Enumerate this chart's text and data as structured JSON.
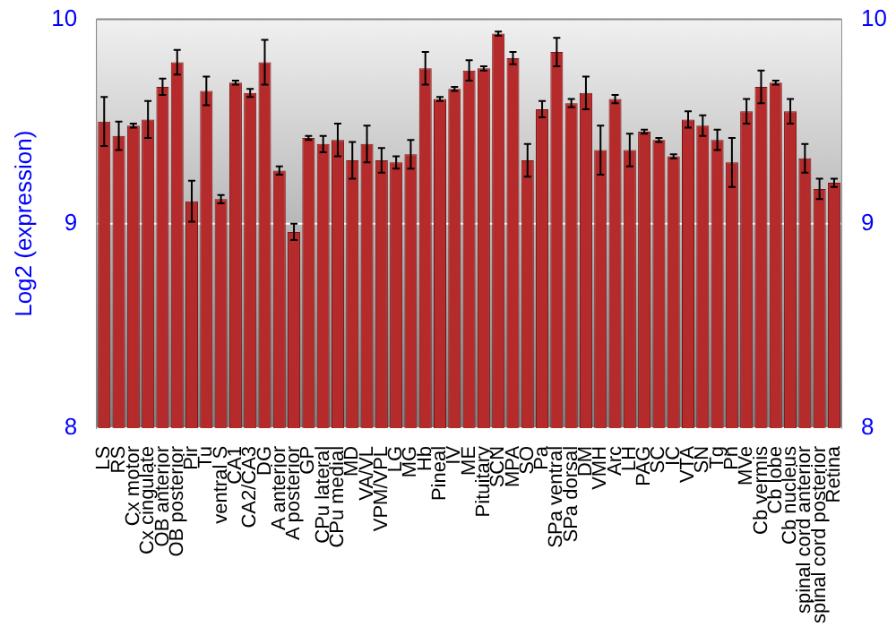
{
  "chart_data": {
    "type": "bar",
    "ylabel": "Log2 (expression)",
    "categories": [
      "LS",
      "RS",
      "Cx motor",
      "Cx cingulate",
      "OB anterior",
      "OB posterior",
      "Pir",
      "Tu",
      "ventral S",
      "CA1",
      "CA2/CA3",
      "DG",
      "A anterior",
      "A posterior",
      "GP",
      "CPu lateral",
      "CPu medial",
      "MD",
      "VA/VL",
      "VPM/VPL",
      "LG",
      "MG",
      "Hb",
      "Pineal",
      "IV",
      "ME",
      "Pituitary",
      "SCN",
      "MPA",
      "SO",
      "Pa",
      "SPa ventral",
      "SPa dorsal",
      "DM",
      "VMH",
      "Arc",
      "LH",
      "PAG",
      "SC",
      "IC",
      "VTA",
      "SN",
      "Tg",
      "Pn",
      "MVe",
      "Cb vermis",
      "Cb lobe",
      "Cb nucleus",
      "spinal cord anterior",
      "spinal cord posterior",
      "Retina"
    ],
    "values": [
      9.5,
      9.43,
      9.48,
      9.51,
      9.67,
      9.79,
      9.11,
      9.65,
      9.12,
      9.69,
      9.64,
      9.79,
      9.26,
      8.96,
      9.42,
      9.39,
      9.41,
      9.31,
      9.39,
      9.31,
      9.3,
      9.34,
      9.76,
      9.61,
      9.66,
      9.75,
      9.76,
      9.93,
      9.81,
      9.31,
      9.56,
      9.84,
      9.59,
      9.64,
      9.36,
      9.61,
      9.36,
      9.45,
      9.41,
      9.33,
      9.51,
      9.48,
      9.41,
      9.3,
      9.55,
      9.67,
      9.69,
      9.55,
      9.32,
      9.17,
      9.2
    ],
    "errors": [
      0.12,
      0.07,
      0.01,
      0.09,
      0.04,
      0.06,
      0.1,
      0.07,
      0.02,
      0.01,
      0.02,
      0.11,
      0.02,
      0.04,
      0.01,
      0.04,
      0.08,
      0.09,
      0.09,
      0.06,
      0.03,
      0.07,
      0.08,
      0.01,
      0.01,
      0.05,
      0.01,
      0.01,
      0.03,
      0.08,
      0.04,
      0.07,
      0.02,
      0.08,
      0.12,
      0.02,
      0.08,
      0.01,
      0.01,
      0.01,
      0.04,
      0.05,
      0.05,
      0.12,
      0.06,
      0.08,
      0.01,
      0.06,
      0.07,
      0.05,
      0.02
    ],
    "color": "#b52a2a",
    "ylim": [
      8,
      10
    ],
    "yticks": [
      8,
      9,
      10
    ],
    "y2lim": [
      8,
      10
    ],
    "y2ticks": [
      8,
      9,
      10
    ],
    "grid": "y",
    "legend": false
  }
}
